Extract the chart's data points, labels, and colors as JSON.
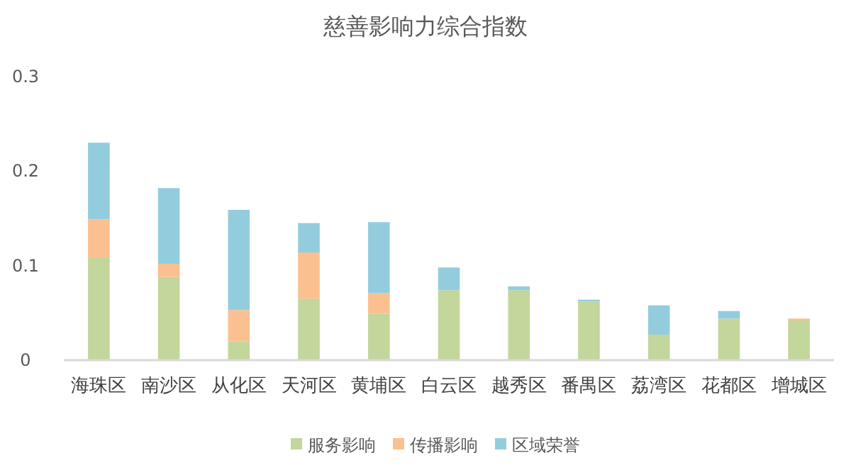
{
  "chart_data": {
    "type": "bar",
    "title": "慈善影响力综合指数",
    "stacked": true,
    "categories": [
      "海珠区",
      "南沙区",
      "从化区",
      "天河区",
      "黄埔区",
      "白云区",
      "越秀区",
      "番禺区",
      "荔湾区",
      "花都区",
      "增城区"
    ],
    "series": [
      {
        "name": "服务影响",
        "color": "#c3d69b",
        "values": [
          0.108,
          0.088,
          0.02,
          0.065,
          0.049,
          0.074,
          0.074,
          0.062,
          0.027,
          0.044,
          0.042
        ]
      },
      {
        "name": "传播影响",
        "color": "#fac090",
        "values": [
          0.041,
          0.014,
          0.033,
          0.049,
          0.022,
          0,
          0,
          0,
          0,
          0,
          0.002
        ]
      },
      {
        "name": "区域荣誉",
        "color": "#93cddd",
        "values": [
          0.081,
          0.08,
          0.106,
          0.031,
          0.075,
          0.024,
          0.004,
          0.002,
          0.031,
          0.008,
          0
        ]
      }
    ],
    "ylim": [
      0,
      0.3
    ],
    "yticks": [
      0,
      0.1,
      0.2,
      0.3
    ],
    "grid": false,
    "legend": "bottom"
  }
}
